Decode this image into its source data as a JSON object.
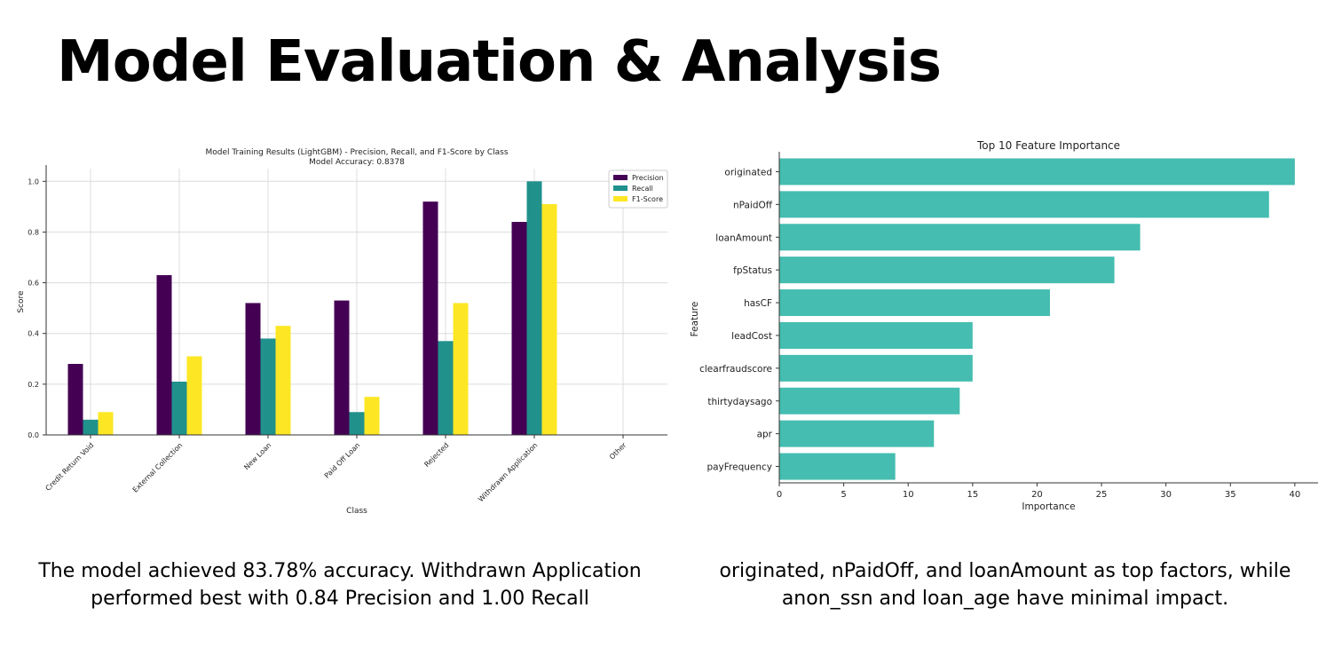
{
  "title": "Model Evaluation & Analysis",
  "captions": {
    "left": [
      "The model achieved 83.78% accuracy. Withdrawn Application",
      "performed best with 0.84 Precision and 1.00 Recall"
    ],
    "right": [
      "originated, nPaidOff, and loanAmount as top factors, while",
      "anon_ssn and loan_age have minimal impact."
    ]
  },
  "chart_data": [
    {
      "type": "bar",
      "title": "Model Training Results (LightGBM) - Precision, Recall, and F1-Score by Class",
      "subtitle": "Model Accuracy: 0.8378",
      "xlabel": "Class",
      "ylabel": "Score",
      "ylim": [
        0,
        1.05
      ],
      "yticks": [
        "0.0",
        "0.2",
        "0.4",
        "0.6",
        "0.8",
        "1.0"
      ],
      "grid": true,
      "legend_position": "top-right",
      "categories": [
        "Credit Return Void",
        "External Collection",
        "New Loan",
        "Paid Off Loan",
        "Rejected",
        "Withdrawn Application",
        "Other"
      ],
      "series": [
        {
          "name": "Precision",
          "color": "#440154",
          "values": [
            0.28,
            0.63,
            0.52,
            0.53,
            0.92,
            0.84,
            0
          ]
        },
        {
          "name": "Recall",
          "color": "#21918c",
          "values": [
            0.06,
            0.21,
            0.38,
            0.09,
            0.37,
            1.0,
            0
          ]
        },
        {
          "name": "F1-Score",
          "color": "#fde725",
          "values": [
            0.09,
            0.31,
            0.43,
            0.15,
            0.52,
            0.91,
            0
          ]
        }
      ]
    },
    {
      "type": "bar",
      "orientation": "horizontal",
      "title": "Top 10 Feature Importance",
      "xlabel": "Importance",
      "ylabel": "Feature",
      "xlim": [
        0,
        41.8
      ],
      "xticks": [
        "0",
        "5",
        "10",
        "15",
        "20",
        "25",
        "30",
        "35",
        "40"
      ],
      "color": "#45bdb0",
      "categories": [
        "originated",
        "nPaidOff",
        "loanAmount",
        "fpStatus",
        "hasCF",
        "leadCost",
        "clearfraudscore",
        "thirtydaysago",
        "apr",
        "payFrequency"
      ],
      "values": [
        40,
        38,
        28,
        26,
        21,
        15,
        15,
        14,
        12,
        9
      ]
    }
  ]
}
